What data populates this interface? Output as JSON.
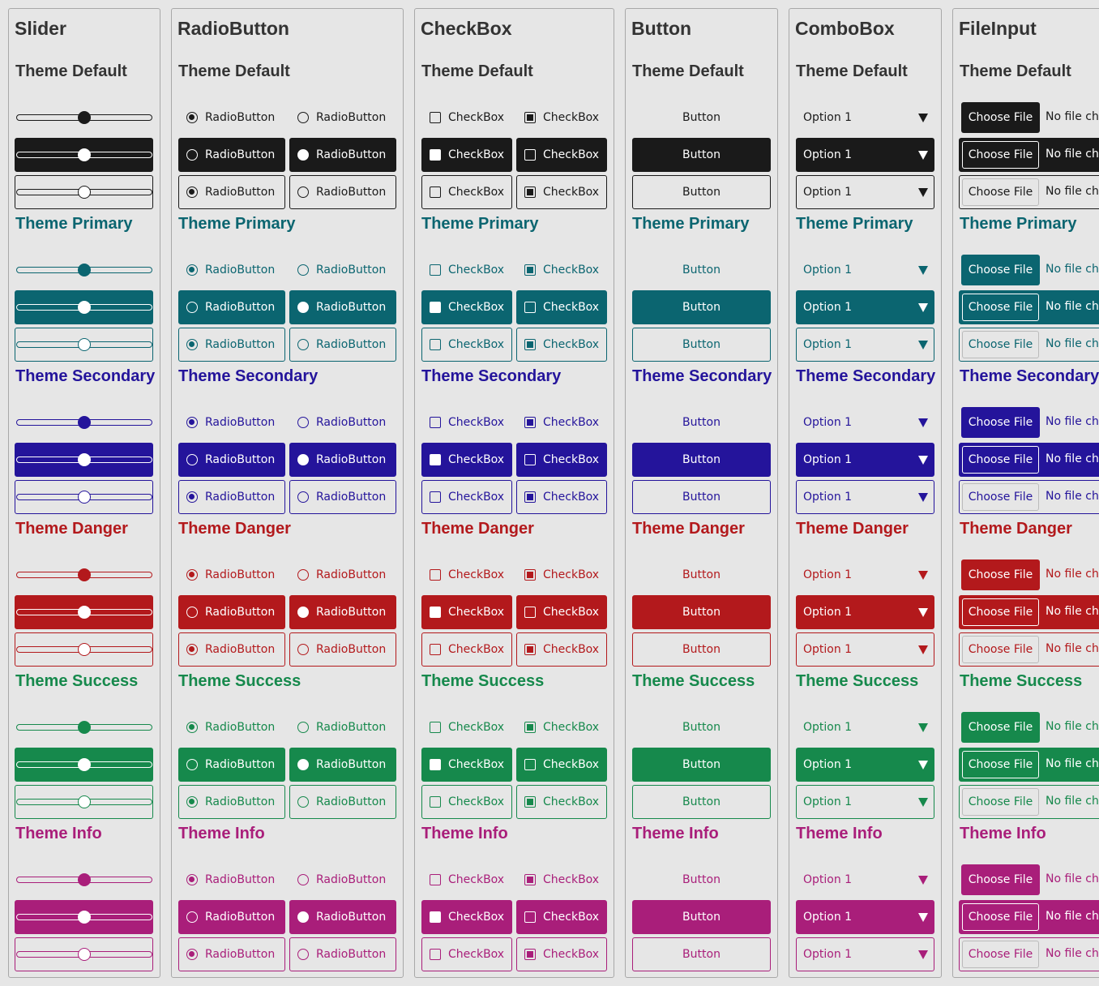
{
  "panels": [
    "Slider",
    "RadioButton",
    "CheckBox",
    "Button",
    "ComboBox",
    "FileInput"
  ],
  "themes": [
    {
      "name": "Theme Default",
      "color": "#1a1a1a",
      "text": "#333333"
    },
    {
      "name": "Theme Primary",
      "color": "#0b6570",
      "text": "#0b6570"
    },
    {
      "name": "Theme Secondary",
      "color": "#24149b",
      "text": "#24149b"
    },
    {
      "name": "Theme Danger",
      "color": "#b3191c",
      "text": "#b3191c"
    },
    {
      "name": "Theme Success",
      "color": "#16894c",
      "text": "#16894c"
    },
    {
      "name": "Theme Info",
      "color": "#a91e7a",
      "text": "#a91e7a"
    }
  ],
  "slider": {
    "value": 50,
    "range": [
      0,
      100
    ]
  },
  "radio": {
    "label": "RadioButton",
    "checked": [
      [
        true,
        false
      ],
      [
        false,
        true
      ],
      [
        true,
        false
      ]
    ]
  },
  "checkbox": {
    "label": "CheckBox",
    "checked": [
      [
        false,
        true
      ],
      [
        true,
        false
      ],
      [
        false,
        true
      ]
    ]
  },
  "button": {
    "label": "Button"
  },
  "combobox": {
    "label": "Option 1"
  },
  "fileinput": {
    "button": "Choose File",
    "status": "No file chosen"
  }
}
